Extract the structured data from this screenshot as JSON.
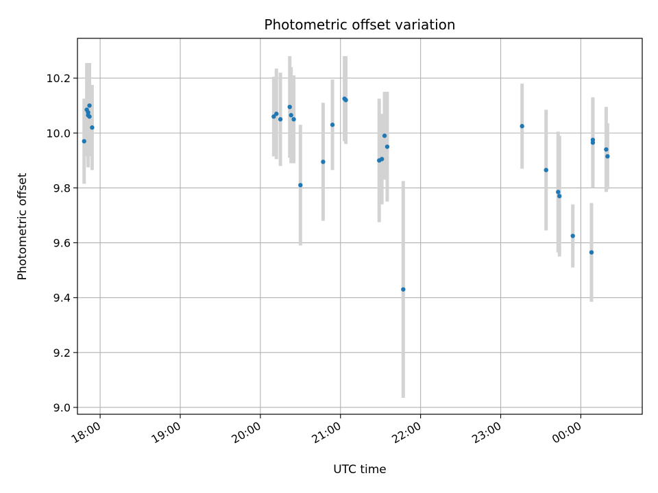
{
  "chart_data": {
    "type": "scatter",
    "title": "Photometric offset variation",
    "xlabel": "UTC time",
    "ylabel": "Photometric offset",
    "x_axis_type": "time",
    "xlim": [
      "17:43",
      "00:46"
    ],
    "ylim": [
      8.975,
      10.345
    ],
    "grid": true,
    "x_ticks": [
      "18:00",
      "19:00",
      "20:00",
      "21:00",
      "22:00",
      "23:00",
      "00:00"
    ],
    "y_ticks": [
      "9.0",
      "9.2",
      "9.4",
      "9.6",
      "9.8",
      "10.0",
      "10.2"
    ],
    "y_tick_values": [
      9.0,
      9.2,
      9.4,
      9.6,
      9.8,
      10.0,
      10.2
    ],
    "point_color": "#1f77b4",
    "errorbar_color": "#d3d3d3",
    "points": [
      {
        "x": "17:48",
        "y": 9.97,
        "err": 0.155
      },
      {
        "x": "17:50",
        "y": 10.085,
        "err": 0.17
      },
      {
        "x": "17:51",
        "y": 10.075,
        "err": 0.175
      },
      {
        "x": "17:51",
        "y": 10.065,
        "err": 0.19
      },
      {
        "x": "17:52",
        "y": 10.1,
        "err": 0.155
      },
      {
        "x": "17:52",
        "y": 10.06,
        "err": 0.145
      },
      {
        "x": "17:54",
        "y": 10.02,
        "err": 0.155
      },
      {
        "x": "20:10",
        "y": 10.06,
        "err": 0.145
      },
      {
        "x": "20:12",
        "y": 10.07,
        "err": 0.165
      },
      {
        "x": "20:15",
        "y": 10.05,
        "err": 0.17
      },
      {
        "x": "20:22",
        "y": 10.095,
        "err": 0.185
      },
      {
        "x": "20:23",
        "y": 10.065,
        "err": 0.175
      },
      {
        "x": "20:25",
        "y": 10.05,
        "err": 0.16
      },
      {
        "x": "20:30",
        "y": 9.81,
        "err": 0.22
      },
      {
        "x": "20:47",
        "y": 9.895,
        "err": 0.215
      },
      {
        "x": "20:54",
        "y": 10.03,
        "err": 0.165
      },
      {
        "x": "21:03",
        "y": 10.125,
        "err": 0.155
      },
      {
        "x": "21:04",
        "y": 10.12,
        "err": 0.16
      },
      {
        "x": "21:29",
        "y": 9.9,
        "err": 0.225
      },
      {
        "x": "21:31",
        "y": 9.905,
        "err": 0.165
      },
      {
        "x": "21:33",
        "y": 9.99,
        "err": 0.16
      },
      {
        "x": "21:35",
        "y": 9.95,
        "err": 0.2
      },
      {
        "x": "21:47",
        "y": 9.43,
        "err": 0.395
      },
      {
        "x": "23:16",
        "y": 10.025,
        "err": 0.155
      },
      {
        "x": "23:34",
        "y": 9.865,
        "err": 0.22
      },
      {
        "x": "23:43",
        "y": 9.785,
        "err": 0.22
      },
      {
        "x": "23:44",
        "y": 9.77,
        "err": 0.22
      },
      {
        "x": "23:54",
        "y": 9.625,
        "err": 0.115
      },
      {
        "x": "00:08",
        "y": 9.565,
        "err": 0.18
      },
      {
        "x": "00:09",
        "y": 9.975,
        "err": 0.15
      },
      {
        "x": "00:09",
        "y": 9.965,
        "err": 0.165
      },
      {
        "x": "00:19",
        "y": 9.94,
        "err": 0.155
      },
      {
        "x": "00:20",
        "y": 9.915,
        "err": 0.12
      }
    ]
  }
}
